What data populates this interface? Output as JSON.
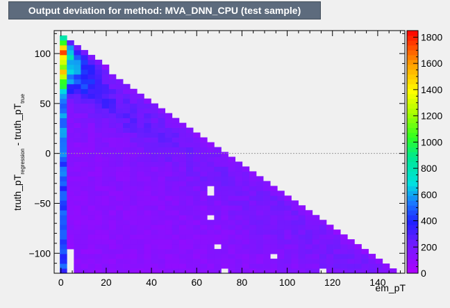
{
  "title": "Output deviation for method: MVA_DNN_CPU (test sample)",
  "chart_data": {
    "type": "heatmap",
    "xlabel": "em_pT",
    "ylabel_main": "truth_pT",
    "ylabel_sub1": "regression",
    "ylabel_mid": " - truth_pT",
    "ylabel_sub2": "true",
    "xlim": [
      -3,
      152
    ],
    "ylim": [
      -120,
      123
    ],
    "x_ticks": [
      0,
      20,
      40,
      60,
      80,
      100,
      120,
      140
    ],
    "x_tick_labels": [
      "0",
      "20",
      "40",
      "60",
      "80",
      "100",
      "120",
      "140"
    ],
    "y_ticks": [
      -100,
      -50,
      0,
      50,
      100
    ],
    "y_tick_labels": [
      "−100",
      "−50",
      "0",
      "50",
      "100"
    ],
    "z_range": [
      0,
      1850
    ],
    "z_ticks": [
      0,
      200,
      400,
      600,
      800,
      1000,
      1200,
      1400,
      1600,
      1800
    ],
    "z_tick_labels": [
      "0",
      "200",
      "400",
      "600",
      "800",
      "1000",
      "1200",
      "1400",
      "1600",
      "1800"
    ],
    "zero_line_y": 0,
    "palette": "rainbow (violet-blue-cyan-green-yellow-red)",
    "bin_width_x": 3.1,
    "bin_width_y": 4.86,
    "support_edge": "y_max ≈ 118 − 1.6·em_pT"
  }
}
